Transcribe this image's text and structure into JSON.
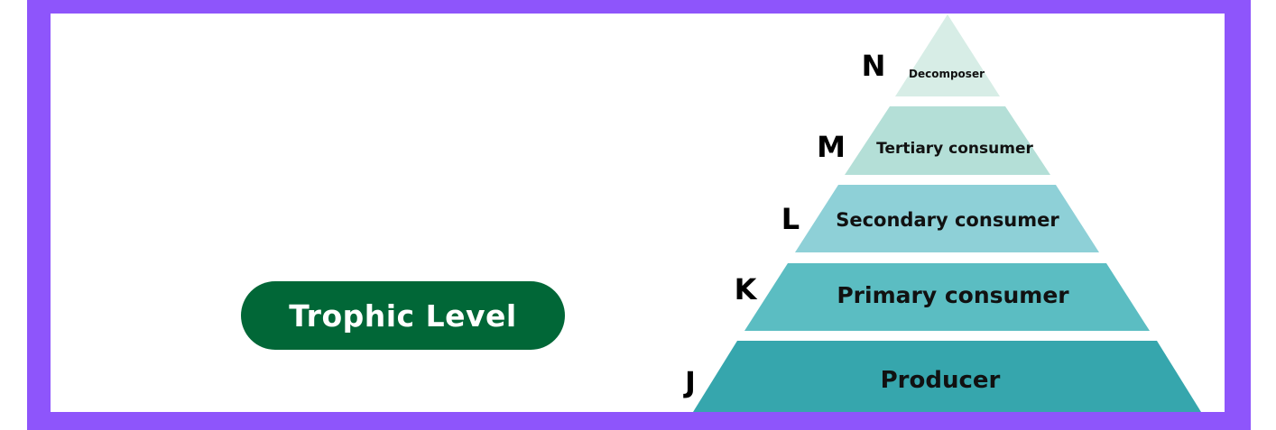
{
  "title": "Trophic Level",
  "tiers": [
    {
      "letter": "J",
      "label": "Producer",
      "color": "#36a6ad"
    },
    {
      "letter": "K",
      "label": "Primary consumer",
      "color": "#5bbdc2"
    },
    {
      "letter": "L",
      "label": "Secondary consumer",
      "color": "#8ed0d7"
    },
    {
      "letter": "M",
      "label": "Tertiary consumer",
      "color": "#b4dfd7"
    },
    {
      "letter": "N",
      "label": "Decomposer",
      "color": "#d7ede6"
    }
  ],
  "colors": {
    "frame": "#8e55fb",
    "title_background": "#016737"
  }
}
